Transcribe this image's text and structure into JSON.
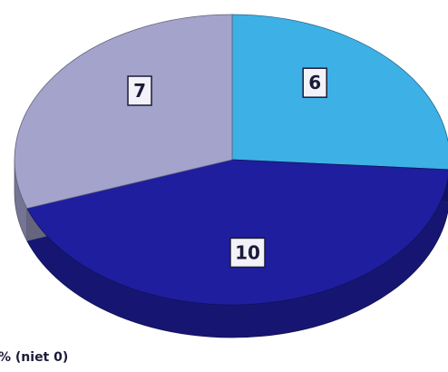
{
  "chart_data": {
    "type": "pie",
    "categories": [
      "6",
      "10",
      "7"
    ],
    "values": [
      6,
      10,
      7
    ],
    "data_labels": [
      "6",
      "10",
      "7"
    ],
    "colors": [
      "#3DB0E6",
      "#1E1E9E",
      "#A3A3CC"
    ],
    "title": "",
    "legend": "none",
    "style": "3d"
  },
  "footer": {
    "note": "% (niet 0)"
  }
}
